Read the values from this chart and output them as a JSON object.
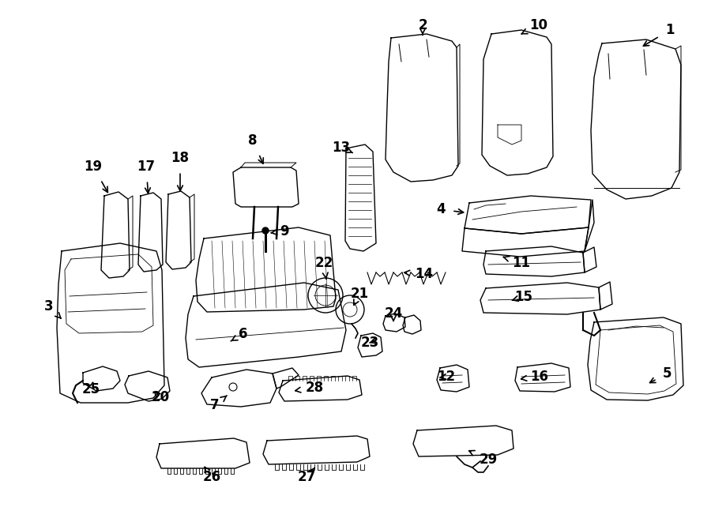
{
  "bg_color": "#ffffff",
  "line_color": "#000000",
  "font_size": 12
}
